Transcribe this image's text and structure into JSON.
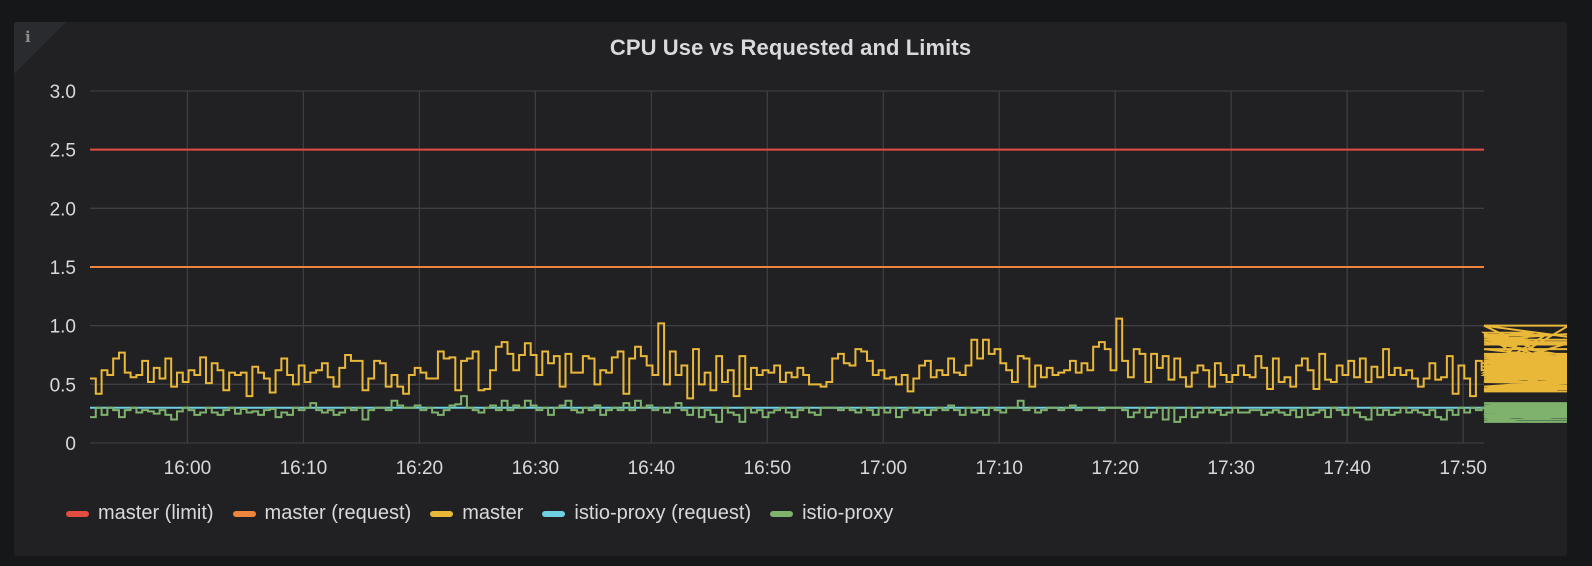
{
  "panel": {
    "title": "CPU Use vs Requested and Limits",
    "info_icon": "i"
  },
  "colors": {
    "background": "#161719",
    "panel": "#212124",
    "grid": "#3d3e42",
    "text": "#d8d9da"
  },
  "legend": [
    {
      "label": "master (limit)",
      "color": "#E24D42"
    },
    {
      "label": "master (request)",
      "color": "#EF843C"
    },
    {
      "label": "master",
      "color": "#EAB839"
    },
    {
      "label": "istio-proxy (request)",
      "color": "#6ED0E0"
    },
    {
      "label": "istio-proxy",
      "color": "#7EB26D"
    }
  ],
  "chart_data": {
    "type": "line",
    "title": "CPU Use vs Requested and Limits",
    "xlabel": "",
    "ylabel": "",
    "ylim": [
      0,
      3.0
    ],
    "yticks": [
      "0",
      "0.5",
      "1.0",
      "1.5",
      "2.0",
      "2.5",
      "3.0"
    ],
    "xticks": [
      "16:00",
      "16:10",
      "16:20",
      "16:30",
      "16:40",
      "16:50",
      "17:00",
      "17:10",
      "17:20",
      "17:30",
      "17:40",
      "17:50"
    ],
    "x_range_minutes": [
      -8.4,
      111.8
    ],
    "x_note": "minutes relative to 16:00",
    "grid": true,
    "legend_position": "bottom",
    "step": true,
    "series": [
      {
        "name": "master (limit)",
        "color": "#E24D42",
        "constant": 2.5
      },
      {
        "name": "master (request)",
        "color": "#EF843C",
        "constant": 1.5
      },
      {
        "name": "master",
        "color": "#EAB839",
        "x_start": -8.4,
        "x_step": 0.5,
        "values": [
          0.55,
          0.42,
          0.62,
          0.58,
          0.72,
          0.77,
          0.6,
          0.56,
          0.58,
          0.7,
          0.52,
          0.64,
          0.55,
          0.72,
          0.48,
          0.6,
          0.52,
          0.62,
          0.58,
          0.73,
          0.51,
          0.68,
          0.62,
          0.45,
          0.6,
          0.58,
          0.6,
          0.4,
          0.65,
          0.6,
          0.55,
          0.43,
          0.62,
          0.72,
          0.58,
          0.5,
          0.66,
          0.52,
          0.6,
          0.62,
          0.68,
          0.56,
          0.48,
          0.64,
          0.75,
          0.7,
          0.7,
          0.45,
          0.55,
          0.7,
          0.68,
          0.48,
          0.58,
          0.48,
          0.42,
          0.58,
          0.64,
          0.6,
          0.55,
          0.55,
          0.78,
          0.72,
          0.73,
          0.45,
          0.7,
          0.72,
          0.78,
          0.45,
          0.46,
          0.62,
          0.82,
          0.86,
          0.76,
          0.62,
          0.75,
          0.85,
          0.75,
          0.58,
          0.78,
          0.68,
          0.74,
          0.48,
          0.76,
          0.6,
          0.6,
          0.74,
          0.72,
          0.5,
          0.62,
          0.6,
          0.73,
          0.78,
          0.42,
          0.72,
          0.82,
          0.74,
          0.66,
          0.58,
          1.02,
          0.5,
          0.78,
          0.58,
          0.66,
          0.38,
          0.8,
          0.5,
          0.6,
          0.45,
          0.74,
          0.52,
          0.62,
          0.4,
          0.74,
          0.46,
          0.64,
          0.58,
          0.62,
          0.6,
          0.66,
          0.52,
          0.6,
          0.56,
          0.64,
          0.58,
          0.5,
          0.5,
          0.48,
          0.52,
          0.72,
          0.76,
          0.68,
          0.66,
          0.8,
          0.78,
          0.7,
          0.58,
          0.62,
          0.55,
          0.56,
          0.5,
          0.58,
          0.44,
          0.55,
          0.66,
          0.7,
          0.56,
          0.62,
          0.58,
          0.72,
          0.6,
          0.58,
          0.66,
          0.88,
          0.72,
          0.88,
          0.76,
          0.8,
          0.68,
          0.62,
          0.52,
          0.74,
          0.72,
          0.48,
          0.66,
          0.56,
          0.64,
          0.58,
          0.6,
          0.62,
          0.7,
          0.6,
          0.68,
          0.62,
          0.82,
          0.86,
          0.8,
          0.62,
          1.06,
          0.7,
          0.56,
          0.8,
          0.76,
          0.52,
          0.76,
          0.64,
          0.74,
          0.54,
          0.72,
          0.56,
          0.48,
          0.6,
          0.66,
          0.62,
          0.48,
          0.68,
          0.58,
          0.52,
          0.58,
          0.66,
          0.58,
          0.56,
          0.74,
          0.64,
          0.46,
          0.72,
          0.52,
          0.56,
          0.48,
          0.66,
          0.72,
          0.62,
          0.46,
          0.76,
          0.54,
          0.52,
          0.66,
          0.58,
          0.7,
          0.56,
          0.72,
          0.52,
          0.65,
          0.56,
          0.8,
          0.58,
          0.64,
          0.58,
          0.62,
          0.55,
          0.48,
          0.55,
          0.68,
          0.54,
          0.56,
          0.74,
          0.42,
          0.66,
          0.55,
          0.4,
          0.7,
          0.62,
          0.65,
          0.58,
          0.68,
          0.52,
          0.6,
          0.58,
          0.88,
          0.9,
          0.94,
          0.6,
          0.92,
          0.7,
          0.45,
          0.58,
          1.0,
          0.64,
          0.88,
          0.84,
          0.86,
          0.7,
          0.64,
          0.6,
          0.58,
          0.64,
          0.74,
          0.62,
          0.52,
          0.7,
          0.56,
          0.76,
          0.66,
          0.54,
          0.72,
          0.62,
          0.88,
          1.0,
          0.76,
          0.7,
          0.48,
          0.62,
          0.8,
          0.58,
          0.52,
          0.74,
          0.65,
          0.68,
          0.66,
          0.62,
          0.7,
          0.72,
          0.66,
          0.54,
          0.56,
          0.72,
          0.7,
          0.72,
          0.7,
          0.56,
          0.44,
          0.64,
          0.65,
          0.62,
          0.58,
          0.48,
          0.6,
          0.46,
          0.52,
          0.46,
          0.72,
          0.62,
          0.48,
          0.52,
          0.74,
          0.72
        ]
      },
      {
        "name": "istio-proxy (request)",
        "color": "#6ED0E0",
        "constant": 0.3
      },
      {
        "name": "istio-proxy",
        "color": "#7EB26D",
        "x_start": -8.4,
        "x_step": 0.5,
        "values": [
          0.22,
          0.3,
          0.24,
          0.3,
          0.28,
          0.22,
          0.28,
          0.3,
          0.26,
          0.28,
          0.27,
          0.25,
          0.28,
          0.24,
          0.2,
          0.27,
          0.3,
          0.28,
          0.24,
          0.26,
          0.3,
          0.26,
          0.24,
          0.28,
          0.3,
          0.25,
          0.29,
          0.26,
          0.27,
          0.24,
          0.28,
          0.29,
          0.22,
          0.26,
          0.24,
          0.3,
          0.28,
          0.3,
          0.34,
          0.28,
          0.26,
          0.28,
          0.24,
          0.26,
          0.3,
          0.28,
          0.3,
          0.2,
          0.28,
          0.3,
          0.3,
          0.28,
          0.36,
          0.32,
          0.3,
          0.3,
          0.32,
          0.28,
          0.3,
          0.26,
          0.24,
          0.28,
          0.32,
          0.33,
          0.4,
          0.3,
          0.28,
          0.26,
          0.3,
          0.32,
          0.28,
          0.36,
          0.28,
          0.32,
          0.3,
          0.36,
          0.32,
          0.28,
          0.3,
          0.24,
          0.3,
          0.32,
          0.36,
          0.28,
          0.26,
          0.3,
          0.28,
          0.32,
          0.24,
          0.28,
          0.3,
          0.28,
          0.34,
          0.28,
          0.36,
          0.3,
          0.32,
          0.28,
          0.3,
          0.26,
          0.3,
          0.34,
          0.28,
          0.24,
          0.3,
          0.22,
          0.28,
          0.24,
          0.18,
          0.3,
          0.26,
          0.24,
          0.18,
          0.3,
          0.26,
          0.28,
          0.22,
          0.26,
          0.28,
          0.3,
          0.26,
          0.22,
          0.28,
          0.3,
          0.26,
          0.24,
          0.3,
          0.3,
          0.3,
          0.28,
          0.3,
          0.28,
          0.26,
          0.3,
          0.28,
          0.24,
          0.3,
          0.26,
          0.3,
          0.22,
          0.28,
          0.3,
          0.26,
          0.28,
          0.24,
          0.28,
          0.3,
          0.28,
          0.32,
          0.28,
          0.24,
          0.3,
          0.26,
          0.28,
          0.24,
          0.3,
          0.28,
          0.26,
          0.3,
          0.3,
          0.36,
          0.28,
          0.3,
          0.26,
          0.28,
          0.3,
          0.3,
          0.28,
          0.3,
          0.32,
          0.28,
          0.3,
          0.3,
          0.3,
          0.28,
          0.3,
          0.3,
          0.3,
          0.28,
          0.22,
          0.26,
          0.3,
          0.22,
          0.26,
          0.3,
          0.2,
          0.3,
          0.18,
          0.22,
          0.3,
          0.22,
          0.26,
          0.3,
          0.26,
          0.28,
          0.24,
          0.26,
          0.3,
          0.26,
          0.26,
          0.28,
          0.28,
          0.24,
          0.26,
          0.28,
          0.26,
          0.24,
          0.28,
          0.22,
          0.3,
          0.24,
          0.26,
          0.28,
          0.22,
          0.3,
          0.28,
          0.24,
          0.3,
          0.26,
          0.22,
          0.2,
          0.3,
          0.24,
          0.28,
          0.24,
          0.26,
          0.3,
          0.26,
          0.28,
          0.26,
          0.24,
          0.28,
          0.22,
          0.2,
          0.28,
          0.24,
          0.3,
          0.26,
          0.3,
          0.28,
          0.3,
          0.24,
          0.28,
          0.26,
          0.3,
          0.3,
          0.22,
          0.28,
          0.3,
          0.32,
          0.3,
          0.32,
          0.28,
          0.3,
          0.3,
          0.3,
          0.32,
          0.3,
          0.34,
          0.3,
          0.28,
          0.3,
          0.26,
          0.32,
          0.3,
          0.28,
          0.3,
          0.22,
          0.3,
          0.2,
          0.32,
          0.28,
          0.22,
          0.34,
          0.28,
          0.18,
          0.3,
          0.22,
          0.3,
          0.26,
          0.3,
          0.28,
          0.24,
          0.3,
          0.28,
          0.3,
          0.26,
          0.3,
          0.28,
          0.26,
          0.24,
          0.28,
          0.22,
          0.26,
          0.28,
          0.26,
          0.24,
          0.26,
          0.28,
          0.26,
          0.25,
          0.26,
          0.28,
          0.24,
          0.26,
          0.28,
          0.3,
          0.24
        ]
      }
    ]
  }
}
